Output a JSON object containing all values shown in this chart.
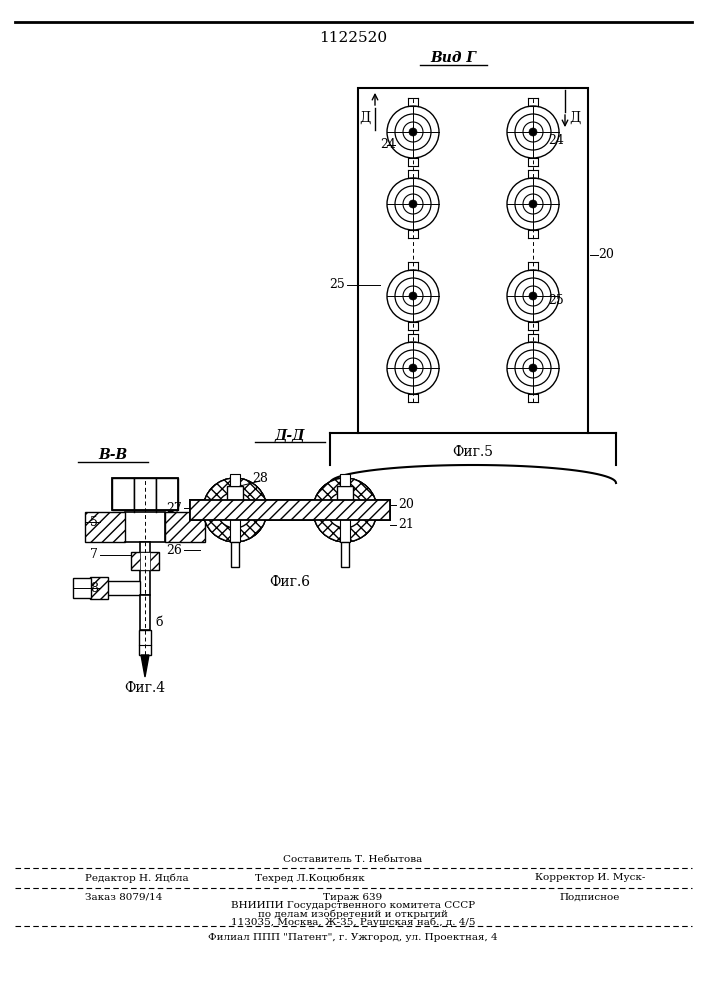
{
  "patent_number": "1122520",
  "bg_color": "#ffffff",
  "fig_width": 7.07,
  "fig_height": 10.0,
  "view_g_label": "Вид Г",
  "view_bb_label": "В-В",
  "view_dd_label": "Д-Д",
  "fig4_label": "Фиг.4",
  "fig5_label": "Фиг.5",
  "fig6_label": "Фиг.6",
  "label5": "5",
  "label7": "7",
  "label8": "8",
  "label_b": "б",
  "label20": "20",
  "label20b": "20",
  "label21": "21",
  "label24a": "24",
  "label24b": "24",
  "label25a": "25",
  "label25b": "25",
  "label26": "26",
  "label27": "27",
  "label28": "28",
  "footer_composer": "Составитель Т. Небытова",
  "footer_editor": "Редактор Н. Яцбла",
  "footer_techred": "Техред Л.Коцюбняк",
  "footer_corrector": "Корректор И. Муск-",
  "footer_order": "Заказ 8079/14",
  "footer_tirazh": "Тираж 639",
  "footer_podpisnoe": "Подписное",
  "footer_vniip1": "ВНИИПИ Государственного комитета СССР",
  "footer_vniip2": "по делам изобретений и открытий",
  "footer_vniip3": "113035, Москва, Ж-35, Раушская наб., д. 4/5",
  "footer_filial": "Филиал ППП \"Патент\", г. Ужгород, ул. Проектная, 4"
}
